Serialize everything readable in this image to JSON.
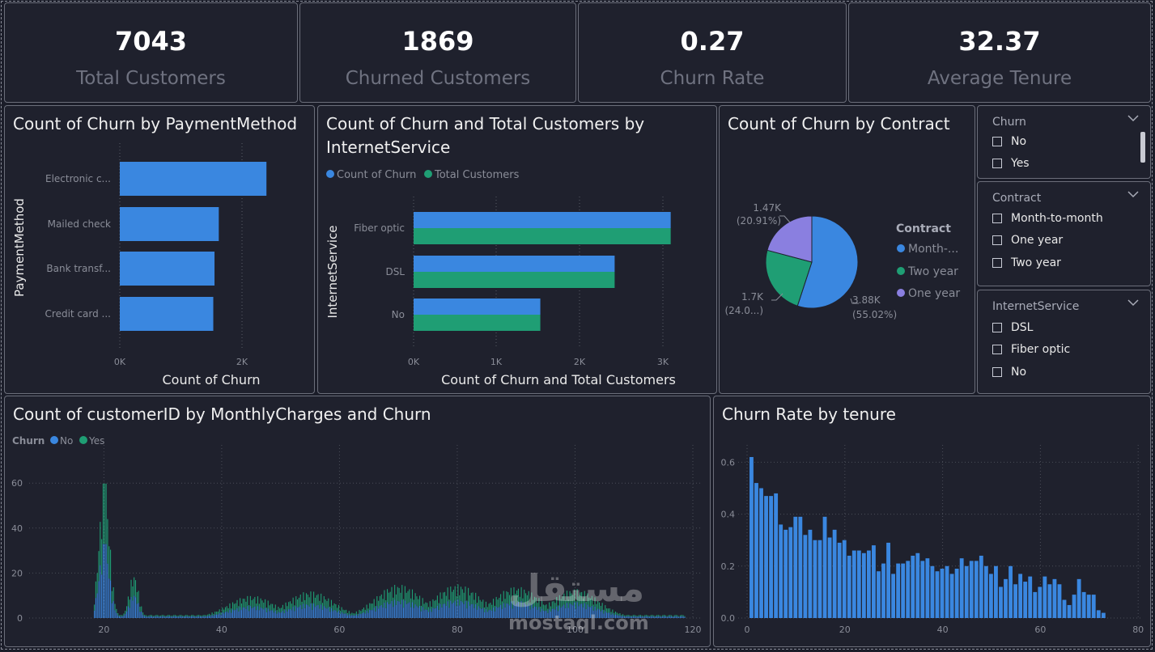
{
  "kpis": [
    {
      "value": "7043",
      "label": "Total Customers"
    },
    {
      "value": "1869",
      "label": "Churned Customers"
    },
    {
      "value": "0.27",
      "label": "Churn Rate"
    },
    {
      "value": "32.37",
      "label": "Average Tenure"
    }
  ],
  "payment_chart": {
    "title": "Count of Churn by PaymentMethod",
    "ylabel": "PaymentMethod",
    "xlabel": "Count of Churn",
    "ticks": [
      "0K",
      "2K"
    ],
    "categories": [
      "Electronic c...",
      "Mailed check",
      "Bank transf...",
      "Credit card ..."
    ],
    "values": [
      2400,
      1620,
      1550,
      1530
    ],
    "color": "#3a87e0"
  },
  "internet_chart": {
    "title": "Count of Churn and Total Customers by InternetService",
    "title_line1": "Count of Churn and Total Customers by",
    "title_line2": "InternetService",
    "legend": [
      "Count of Churn",
      "Total Customers"
    ],
    "colors": [
      "#3a87e0",
      "#1f9e74"
    ],
    "ylabel": "InternetService",
    "xlabel": "Count of Churn and Total Customers",
    "ticks": [
      "0K",
      "1K",
      "2K",
      "3K"
    ],
    "categories": [
      "Fiber optic",
      "DSL",
      "No"
    ],
    "series": [
      {
        "name": "Count of Churn",
        "values": [
          3096,
          2421,
          1526
        ]
      },
      {
        "name": "Total Customers",
        "values": [
          3096,
          2421,
          1526
        ]
      }
    ]
  },
  "contract_chart": {
    "title": "Count of Churn by Contract",
    "legend_title": "Contract",
    "legend": [
      "Month-...",
      "Two year",
      "One year"
    ],
    "colors": [
      "#3a87e0",
      "#1f9e74",
      "#8a7fe0"
    ],
    "values": [
      3880,
      1700,
      1470
    ],
    "labels": [
      {
        "line1": "3.88K",
        "line2": "(55.02%)"
      },
      {
        "line1": "1.7K",
        "line2": "(24.0...)"
      },
      {
        "line1": "1.47K",
        "line2": "(20.91%)"
      }
    ]
  },
  "slicers": [
    {
      "title": "Churn",
      "items": [
        "No",
        "Yes"
      ]
    },
    {
      "title": "Contract",
      "items": [
        "Month-to-month",
        "One year",
        "Two year"
      ]
    },
    {
      "title": "InternetService",
      "items": [
        "DSL",
        "Fiber optic",
        "No"
      ]
    }
  ],
  "monthly_chart": {
    "title": "Count of customerID by MonthlyCharges and Churn",
    "legend_title": "Churn",
    "legend": [
      "No",
      "Yes"
    ],
    "colors": [
      "#3a87e0",
      "#1f9e74"
    ],
    "yticks": [
      "0",
      "20",
      "40",
      "60"
    ],
    "xticks": [
      "20",
      "40",
      "60",
      "80",
      "100",
      "120"
    ],
    "peaks": [
      {
        "x": 20,
        "y": 61
      },
      {
        "x": 25,
        "y": 20
      },
      {
        "x": 45,
        "y": 10
      },
      {
        "x": 55,
        "y": 12
      },
      {
        "x": 70,
        "y": 15
      },
      {
        "x": 80,
        "y": 15
      },
      {
        "x": 90,
        "y": 14
      },
      {
        "x": 100,
        "y": 13
      }
    ]
  },
  "tenure_chart": {
    "title": "Churn Rate by tenure",
    "color": "#3a87e0",
    "yticks": [
      "0.0",
      "0.2",
      "0.4",
      "0.6"
    ],
    "xticks": [
      "0",
      "20",
      "40",
      "60",
      "80"
    ],
    "values": [
      0.62,
      0.52,
      0.5,
      0.47,
      0.47,
      0.48,
      0.36,
      0.34,
      0.35,
      0.39,
      0.39,
      0.32,
      0.34,
      0.3,
      0.3,
      0.39,
      0.31,
      0.34,
      0.29,
      0.3,
      0.24,
      0.26,
      0.26,
      0.25,
      0.26,
      0.28,
      0.18,
      0.21,
      0.29,
      0.17,
      0.21,
      0.21,
      0.22,
      0.24,
      0.25,
      0.22,
      0.23,
      0.2,
      0.18,
      0.19,
      0.2,
      0.17,
      0.19,
      0.23,
      0.2,
      0.22,
      0.22,
      0.24,
      0.2,
      0.17,
      0.2,
      0.12,
      0.15,
      0.2,
      0.13,
      0.17,
      0.14,
      0.16,
      0.1,
      0.12,
      0.16,
      0.13,
      0.15,
      0.13,
      0.07,
      0.05,
      0.09,
      0.15,
      0.1,
      0.09,
      0.09,
      0.03,
      0.02
    ]
  },
  "watermark": {
    "arabic": "مستقل",
    "latin": "mostaql.com"
  }
}
